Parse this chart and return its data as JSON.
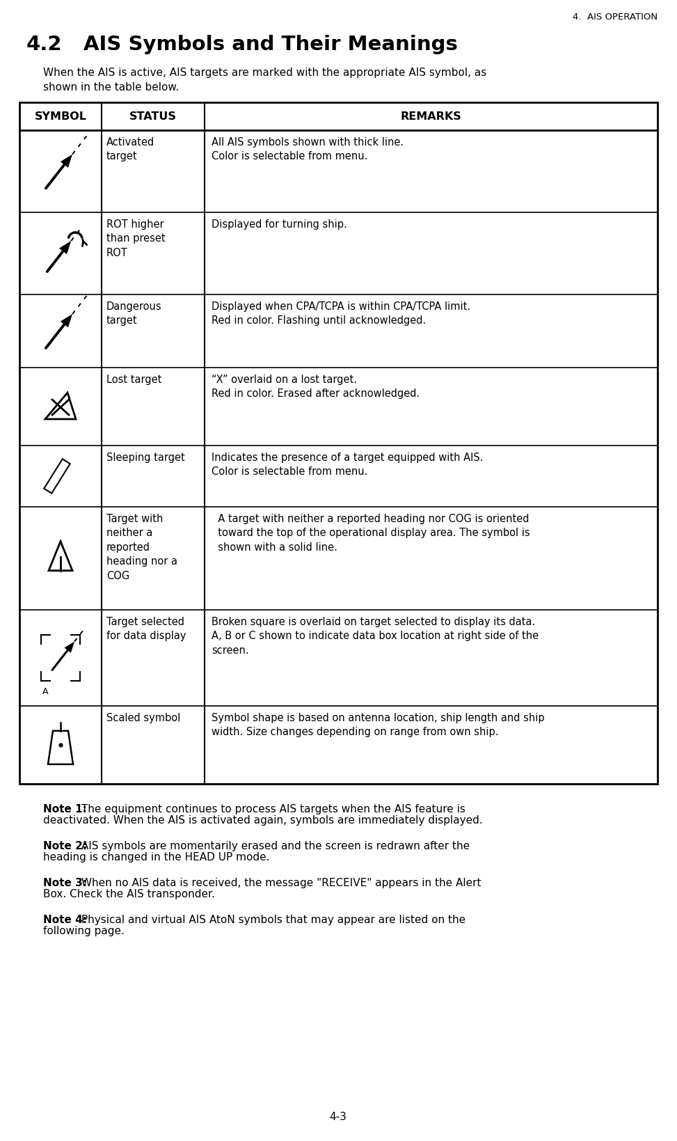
{
  "page_header": "4.  AIS OPERATION",
  "section_number": "4.2",
  "section_title": "AIS Symbols and Their Meanings",
  "intro_line1": "When the AIS is active, AIS targets are marked with the appropriate AIS symbol, as",
  "intro_line2": "shown in the table below.",
  "table_headers": [
    "SYMBOL",
    "STATUS",
    "REMARKS"
  ],
  "rows": [
    {
      "symbol": "activated",
      "status": "Activated\ntarget",
      "remarks": "All AIS symbols shown with thick line.\nColor is selectable from menu."
    },
    {
      "symbol": "rot",
      "status": "ROT higher\nthan preset\nROT",
      "remarks": "Displayed for turning ship."
    },
    {
      "symbol": "dangerous",
      "status": "Dangerous\ntarget",
      "remarks": "Displayed when CPA/TCPA is within CPA/TCPA limit.\nRed in color. Flashing until acknowledged."
    },
    {
      "symbol": "lost",
      "status": "Lost target",
      "remarks": "“X” overlaid on a lost target.\nRed in color. Erased after acknowledged."
    },
    {
      "symbol": "sleeping",
      "status": "Sleeping target",
      "remarks": "Indicates the presence of a target equipped with AIS.\nColor is selectable from menu."
    },
    {
      "symbol": "no_heading",
      "status": "Target with\nneither a\nreported\nheading nor a\nCOG",
      "remarks": "  A target with neither a reported heading nor COG is oriented\n  toward the top of the operational display area. The symbol is\n  shown with a solid line."
    },
    {
      "symbol": "selected",
      "status": "Target selected\nfor data display",
      "remarks": "Broken square is overlaid on target selected to display its data.\nA, B or C shown to indicate data box location at right side of the\nscreen."
    },
    {
      "symbol": "scaled",
      "status": "Scaled symbol",
      "remarks": "Symbol shape is based on antenna location, ship length and ship\nwidth. Size changes depending on range from own ship."
    }
  ],
  "notes": [
    [
      "Note 1:",
      " The equipment continues to process AIS targets when the AIS feature is\ndeactivated. When the AIS is activated again, symbols are immediately displayed."
    ],
    [
      "Note 2:",
      " AIS symbols are momentarily erased and the screen is redrawn after the\nheading is changed in the HEAD UP mode."
    ],
    [
      "Note 3:",
      " When no AIS data is received, the message \"RECEIVE\" appears in the Alert\nBox. Check the AIS transponder."
    ],
    [
      "Note 4:",
      " Physical and virtual AIS AtoN symbols that may appear are listed on the\nfollowing page."
    ]
  ],
  "page_footer": "4-3",
  "bg_color": "#ffffff"
}
